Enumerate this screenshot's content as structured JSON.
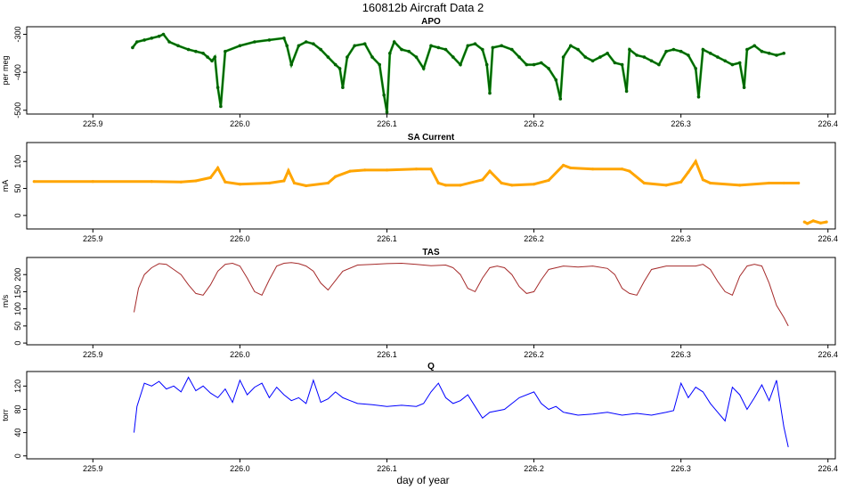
{
  "page": {
    "title": "160812b   Aircraft Data 2",
    "xlabel": "day of year"
  },
  "colors": {
    "apo_fill": "#006400",
    "apo_light": "#33dd33",
    "sa_current": "#ffa500",
    "tas": "#a52a2a",
    "q": "#0000ff"
  },
  "chart_data": [
    {
      "type": "scatter",
      "title": "APO",
      "ylabel": "per meg",
      "xlim": [
        225.855,
        226.405
      ],
      "ylim": [
        -510,
        -280
      ],
      "xticks": [
        "225.9",
        "226.0",
        "226.1",
        "226.2",
        "226.3",
        "226.4"
      ],
      "xtick_values": [
        225.9,
        226.0,
        226.1,
        226.2,
        226.3,
        226.4
      ],
      "yticks": [
        "-300",
        "-400",
        "-500"
      ],
      "ytick_values": [
        -300,
        -400,
        -500
      ],
      "series": [
        {
          "x": [
            225.927,
            225.93,
            225.935,
            225.94,
            225.945,
            225.948,
            225.952,
            225.958,
            225.965,
            225.97,
            225.975,
            225.978,
            225.981,
            225.983,
            225.985,
            225.987,
            225.99,
            226.0,
            226.01,
            226.02,
            226.03,
            226.032,
            226.035,
            226.04,
            226.045,
            226.05,
            226.055,
            226.06,
            226.065,
            226.068,
            226.07,
            226.073,
            226.078,
            226.085,
            226.09,
            226.095,
            226.098,
            226.1,
            226.102,
            226.105,
            226.11,
            226.115,
            226.12,
            226.125,
            226.13,
            226.135,
            226.14,
            226.145,
            226.15,
            226.155,
            226.16,
            226.165,
            226.168,
            226.17,
            226.172,
            226.178,
            226.185,
            226.19,
            226.195,
            226.2,
            226.205,
            226.21,
            226.215,
            226.218,
            226.22,
            226.225,
            226.23,
            226.235,
            226.24,
            226.245,
            226.25,
            226.255,
            226.26,
            226.263,
            226.265,
            226.27,
            226.275,
            226.28,
            226.285,
            226.29,
            226.295,
            226.3,
            226.305,
            226.31,
            226.312,
            226.315,
            226.32,
            226.325,
            226.33,
            226.335,
            226.34,
            226.343,
            226.345,
            226.35,
            226.355,
            226.36,
            226.365,
            226.37
          ],
          "y": [
            -335,
            -320,
            -315,
            -310,
            -305,
            -300,
            -320,
            -330,
            -340,
            -345,
            -350,
            -360,
            -370,
            -360,
            -440,
            -490,
            -345,
            -330,
            -320,
            -315,
            -310,
            -330,
            -380,
            -330,
            -320,
            -325,
            -340,
            -360,
            -380,
            -390,
            -440,
            -360,
            -330,
            -325,
            -360,
            -380,
            -460,
            -505,
            -350,
            -320,
            -340,
            -345,
            -360,
            -390,
            -330,
            -335,
            -340,
            -360,
            -380,
            -330,
            -325,
            -340,
            -380,
            -455,
            -335,
            -330,
            -340,
            -360,
            -380,
            -380,
            -375,
            -390,
            -420,
            -470,
            -360,
            -330,
            -340,
            -360,
            -370,
            -360,
            -350,
            -375,
            -380,
            -450,
            -340,
            -355,
            -360,
            -370,
            -380,
            -345,
            -340,
            -345,
            -355,
            -390,
            -465,
            -340,
            -350,
            -360,
            -370,
            -380,
            -375,
            -440,
            -340,
            -330,
            -345,
            -350,
            -355,
            -350
          ]
        }
      ]
    },
    {
      "type": "scatter",
      "title": "SA Current",
      "ylabel": "mA",
      "xlim": [
        225.855,
        226.405
      ],
      "ylim": [
        -25,
        135
      ],
      "xticks": [
        "225.9",
        "226.0",
        "226.1",
        "226.2",
        "226.3",
        "226.4"
      ],
      "xtick_values": [
        225.9,
        226.0,
        226.1,
        226.2,
        226.3,
        226.4
      ],
      "yticks": [
        "0",
        "50",
        "100"
      ],
      "ytick_values": [
        0,
        50,
        100
      ],
      "series": [
        {
          "x": [
            225.86,
            225.9,
            225.94,
            225.96,
            225.97,
            225.98,
            225.985,
            225.99,
            226.0,
            226.02,
            226.03,
            226.033,
            226.037,
            226.045,
            226.06,
            226.065,
            226.075,
            226.085,
            226.1,
            226.12,
            226.13,
            226.135,
            226.14,
            226.15,
            226.165,
            226.17,
            226.178,
            226.185,
            226.2,
            226.21,
            226.22,
            226.225,
            226.24,
            226.26,
            226.265,
            226.275,
            226.29,
            226.3,
            226.305,
            226.31,
            226.315,
            226.32,
            226.34,
            226.36,
            226.37,
            226.38
          ],
          "y": [
            63,
            63,
            63,
            62,
            64,
            70,
            88,
            62,
            58,
            60,
            64,
            83,
            60,
            55,
            60,
            72,
            82,
            84,
            84,
            86,
            86,
            60,
            56,
            56,
            66,
            82,
            60,
            56,
            58,
            65,
            93,
            88,
            86,
            86,
            82,
            60,
            56,
            62,
            80,
            100,
            66,
            60,
            56,
            60,
            60,
            60
          ]
        },
        {
          "x": [
            226.384,
            226.386,
            226.39,
            226.395,
            226.399
          ],
          "y": [
            -12,
            -15,
            -10,
            -14,
            -12
          ]
        }
      ]
    },
    {
      "type": "line",
      "title": "TAS",
      "ylabel": "m/s",
      "xlim": [
        225.855,
        226.405
      ],
      "ylim": [
        -5,
        250
      ],
      "xticks": [
        "225.9",
        "226.0",
        "226.1",
        "226.2",
        "226.3",
        "226.4"
      ],
      "xtick_values": [
        225.9,
        226.0,
        226.1,
        226.2,
        226.3,
        226.4
      ],
      "yticks": [
        "0",
        "50",
        "100",
        "150",
        "200"
      ],
      "ytick_values": [
        0,
        50,
        100,
        150,
        200
      ],
      "series": [
        {
          "x": [
            225.928,
            225.931,
            225.935,
            225.94,
            225.945,
            225.95,
            225.955,
            225.96,
            225.965,
            225.97,
            225.975,
            225.98,
            225.985,
            225.99,
            225.995,
            226.0,
            226.005,
            226.01,
            226.015,
            226.02,
            226.025,
            226.03,
            226.035,
            226.04,
            226.045,
            226.05,
            226.055,
            226.06,
            226.07,
            226.08,
            226.09,
            226.1,
            226.11,
            226.12,
            226.13,
            226.14,
            226.145,
            226.15,
            226.155,
            226.16,
            226.165,
            226.17,
            226.175,
            226.18,
            226.185,
            226.19,
            226.195,
            226.2,
            226.205,
            226.21,
            226.22,
            226.23,
            226.24,
            226.25,
            226.255,
            226.26,
            226.265,
            226.27,
            226.275,
            226.28,
            226.29,
            226.3,
            226.305,
            226.31,
            226.315,
            226.32,
            226.325,
            226.33,
            226.335,
            226.34,
            226.345,
            226.35,
            226.355,
            226.36,
            226.365,
            226.37,
            226.373
          ],
          "y": [
            90,
            160,
            200,
            220,
            232,
            230,
            215,
            200,
            170,
            145,
            140,
            170,
            210,
            230,
            233,
            225,
            190,
            150,
            140,
            185,
            225,
            233,
            235,
            232,
            225,
            210,
            175,
            155,
            210,
            228,
            230,
            232,
            233,
            230,
            226,
            228,
            220,
            200,
            160,
            150,
            190,
            220,
            225,
            220,
            200,
            165,
            145,
            150,
            185,
            215,
            225,
            222,
            225,
            218,
            200,
            160,
            145,
            140,
            180,
            215,
            225,
            225,
            225,
            225,
            230,
            215,
            180,
            150,
            140,
            195,
            225,
            230,
            225,
            175,
            110,
            75,
            50
          ]
        }
      ]
    },
    {
      "type": "line",
      "title": "Q",
      "ylabel": "torr",
      "xlim": [
        225.855,
        226.405
      ],
      "ylim": [
        -5,
        145
      ],
      "xticks": [
        "225.9",
        "226.0",
        "226.1",
        "226.2",
        "226.3",
        "226.4"
      ],
      "xtick_values": [
        225.9,
        226.0,
        226.1,
        226.2,
        226.3,
        226.4
      ],
      "yticks": [
        "0",
        "40",
        "80",
        "120"
      ],
      "ytick_values": [
        0,
        40,
        80,
        120
      ],
      "series": [
        {
          "x": [
            225.928,
            225.93,
            225.935,
            225.94,
            225.945,
            225.95,
            225.955,
            225.96,
            225.965,
            225.97,
            225.975,
            225.98,
            225.985,
            225.99,
            225.995,
            226.0,
            226.005,
            226.01,
            226.015,
            226.02,
            226.025,
            226.03,
            226.035,
            226.04,
            226.045,
            226.05,
            226.055,
            226.06,
            226.065,
            226.07,
            226.075,
            226.08,
            226.09,
            226.1,
            226.11,
            226.12,
            226.125,
            226.13,
            226.135,
            226.14,
            226.145,
            226.15,
            226.155,
            226.16,
            226.165,
            226.17,
            226.18,
            226.19,
            226.2,
            226.205,
            226.21,
            226.215,
            226.22,
            226.23,
            226.24,
            226.25,
            226.26,
            226.27,
            226.28,
            226.29,
            226.295,
            226.3,
            226.305,
            226.31,
            226.315,
            226.32,
            226.325,
            226.33,
            226.335,
            226.34,
            226.345,
            226.35,
            226.355,
            226.36,
            226.365,
            226.37,
            226.373
          ],
          "y": [
            40,
            85,
            125,
            120,
            128,
            115,
            120,
            110,
            135,
            112,
            120,
            108,
            100,
            115,
            92,
            130,
            105,
            118,
            125,
            100,
            118,
            105,
            95,
            100,
            90,
            130,
            92,
            98,
            110,
            100,
            95,
            90,
            88,
            85,
            87,
            85,
            90,
            110,
            125,
            100,
            90,
            95,
            105,
            85,
            65,
            75,
            80,
            100,
            110,
            90,
            80,
            85,
            75,
            70,
            72,
            75,
            70,
            73,
            70,
            75,
            78,
            125,
            100,
            118,
            110,
            90,
            75,
            60,
            118,
            105,
            80,
            100,
            122,
            95,
            130,
            50,
            15
          ]
        }
      ]
    }
  ]
}
